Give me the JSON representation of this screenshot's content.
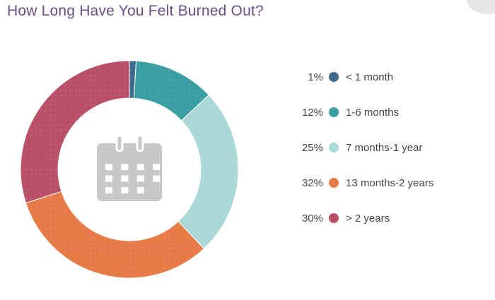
{
  "chart_data": {
    "type": "pie",
    "title": "How Long Have You Felt Burned Out?",
    "donut": true,
    "center_icon": "calendar-icon",
    "legend_position": "right",
    "categories": [
      "< 1 month",
      "1-6 months",
      "7 months-1 year",
      "13 months-2 years",
      "> 2 years"
    ],
    "values": [
      1,
      12,
      25,
      32,
      30
    ],
    "labels": [
      "1%",
      "12%",
      "25%",
      "32%",
      "30%"
    ],
    "colors": [
      "#3d6a8e",
      "#3a9ea3",
      "#a9d8d6",
      "#e77b47",
      "#b9506a"
    ]
  },
  "colors": {
    "title": "#6b4d86",
    "icon": "#c8c8c8"
  }
}
